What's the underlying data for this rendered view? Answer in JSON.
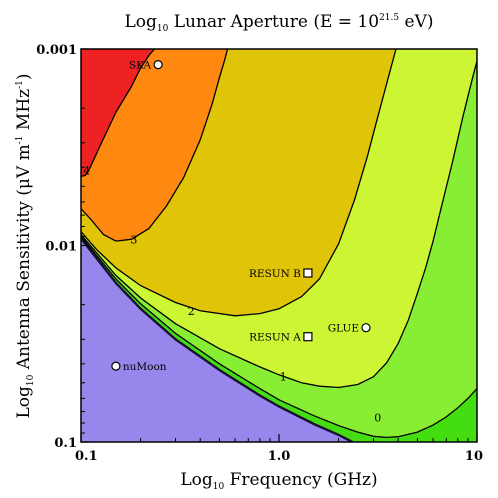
{
  "chart_data": {
    "type": "contour",
    "title": {
      "main": "Log",
      "sub": "10",
      "rest": " Lunar Aperture (E = 10",
      "sup": "21.5",
      "end": " eV)"
    },
    "xlabel": {
      "main": "Log",
      "sub": "10",
      "rest": " Frequency (GHz)"
    },
    "ylabel": {
      "main": "Log",
      "sub": "10",
      "rest": " Antenna Sensitivity (μV m",
      "sup1": "-1",
      "mid": " MHz",
      "sup2": "-1",
      "end": ")"
    },
    "x_scale": "log",
    "y_scale": "log",
    "y_inverted": true,
    "xlim": [
      0.1,
      10
    ],
    "ylim": [
      0.001,
      0.1
    ],
    "x_ticks": [
      {
        "value": 0.1,
        "label": "0.1"
      },
      {
        "value": 1,
        "label": "1.0"
      },
      {
        "value": 10,
        "label": "10"
      }
    ],
    "y_ticks": [
      {
        "value": 0.001,
        "label": "0.001"
      },
      {
        "value": 0.01,
        "label": "0.01"
      },
      {
        "value": 0.1,
        "label": "0.1"
      }
    ],
    "level_colors": {
      "excluded": "#9787ec",
      "below_0": "#44dd11",
      "0_to_1": "#88ee33",
      "1_to_2": "#ccf533",
      "2_to_3": "#dfc408",
      "3_to_4": "#ff8811",
      "above_4": "#ee2222"
    },
    "contours": [
      {
        "level": "4",
        "points": [
          [
            0.1,
            0.00445
          ],
          [
            0.105,
            0.0044
          ],
          [
            0.11,
            0.0041
          ],
          [
            0.125,
            0.0031
          ],
          [
            0.15,
            0.0021
          ],
          [
            0.18,
            0.00155
          ],
          [
            0.2,
            0.00125
          ],
          [
            0.22,
            0.00108
          ],
          [
            0.235,
            0.001
          ]
        ],
        "label_at": [
          0.107,
          0.00415
        ]
      },
      {
        "level": "3",
        "points": [
          [
            0.1,
            0.0065
          ],
          [
            0.11,
            0.0072
          ],
          [
            0.13,
            0.0088
          ],
          [
            0.15,
            0.0095
          ],
          [
            0.18,
            0.0093
          ],
          [
            0.22,
            0.0082
          ],
          [
            0.27,
            0.0063
          ],
          [
            0.33,
            0.0045
          ],
          [
            0.4,
            0.0029
          ],
          [
            0.46,
            0.0019
          ],
          [
            0.5,
            0.0014
          ],
          [
            0.53,
            0.00115
          ],
          [
            0.55,
            0.001
          ]
        ],
        "label_at": [
          0.185,
          0.0093
        ]
      },
      {
        "level": "2",
        "points": [
          [
            0.1,
            0.0085
          ],
          [
            0.12,
            0.0105
          ],
          [
            0.15,
            0.013
          ],
          [
            0.2,
            0.016
          ],
          [
            0.3,
            0.0195
          ],
          [
            0.4,
            0.0215
          ],
          [
            0.6,
            0.0228
          ],
          [
            0.8,
            0.0222
          ],
          [
            1.0,
            0.021
          ],
          [
            1.3,
            0.0182
          ],
          [
            1.6,
            0.0148
          ],
          [
            2.0,
            0.0098
          ],
          [
            2.4,
            0.0059
          ],
          [
            2.8,
            0.0035
          ],
          [
            3.2,
            0.0021
          ],
          [
            3.6,
            0.00135
          ],
          [
            3.9,
            0.001
          ]
        ],
        "label_at": [
          0.36,
          0.0215
        ]
      },
      {
        "level": "1",
        "points": [
          [
            0.1,
            0.0088
          ],
          [
            0.15,
            0.0142
          ],
          [
            0.2,
            0.0185
          ],
          [
            0.3,
            0.025
          ],
          [
            0.5,
            0.0335
          ],
          [
            0.8,
            0.0415
          ],
          [
            1.0,
            0.0455
          ],
          [
            1.3,
            0.05
          ],
          [
            1.6,
            0.052
          ],
          [
            2.0,
            0.0528
          ],
          [
            2.5,
            0.051
          ],
          [
            3.0,
            0.0465
          ],
          [
            3.5,
            0.0395
          ],
          [
            4.0,
            0.0315
          ],
          [
            4.5,
            0.024
          ],
          [
            5.0,
            0.0175
          ],
          [
            5.5,
            0.013
          ],
          [
            6.0,
            0.0095
          ],
          [
            6.5,
            0.0068
          ],
          [
            7.5,
            0.0038
          ],
          [
            8.5,
            0.0022
          ],
          [
            9.5,
            0.0014
          ],
          [
            10,
            0.00115
          ]
        ],
        "label_at": [
          1.05,
          0.0465
        ]
      },
      {
        "level": "0",
        "points": [
          [
            0.1,
            0.009
          ],
          [
            0.15,
            0.0148
          ],
          [
            0.2,
            0.0198
          ],
          [
            0.3,
            0.028
          ],
          [
            0.5,
            0.04
          ],
          [
            0.8,
            0.0535
          ],
          [
            1.0,
            0.061
          ],
          [
            1.5,
            0.0735
          ],
          [
            2.0,
            0.0825
          ],
          [
            2.5,
            0.089
          ],
          [
            3.0,
            0.0935
          ],
          [
            3.5,
            0.0948
          ],
          [
            4.0,
            0.094
          ],
          [
            5.0,
            0.089
          ],
          [
            6.0,
            0.082
          ],
          [
            7.0,
            0.0745
          ],
          [
            8.0,
            0.067
          ],
          [
            9.0,
            0.06
          ],
          [
            10,
            0.0535
          ]
        ],
        "label_at": [
          3.15,
          0.075
        ]
      }
    ],
    "threshold": {
      "points": [
        [
          0.1,
          0.0092
        ],
        [
          0.15,
          0.0155
        ],
        [
          0.2,
          0.021
        ],
        [
          0.3,
          0.03
        ],
        [
          0.5,
          0.043
        ],
        [
          0.8,
          0.058
        ],
        [
          1.0,
          0.066
        ],
        [
          1.5,
          0.081
        ],
        [
          2.0,
          0.092
        ],
        [
          2.35,
          0.1
        ]
      ]
    },
    "annotations": [
      {
        "text": "SKA",
        "x": 0.245,
        "y": 0.0012,
        "marker": "circle",
        "anchor": "left"
      },
      {
        "text": "RESUN B",
        "x": 1.4,
        "y": 0.0138,
        "marker": "square",
        "anchor": "left"
      },
      {
        "text": "RESUN A",
        "x": 1.4,
        "y": 0.0291,
        "marker": "square",
        "anchor": "left"
      },
      {
        "text": "GLUE",
        "x": 2.75,
        "y": 0.0262,
        "marker": "circle",
        "anchor": "left"
      },
      {
        "text": "nuMoon",
        "x": 0.15,
        "y": 0.0411,
        "marker": "circle",
        "anchor": "right"
      }
    ]
  }
}
